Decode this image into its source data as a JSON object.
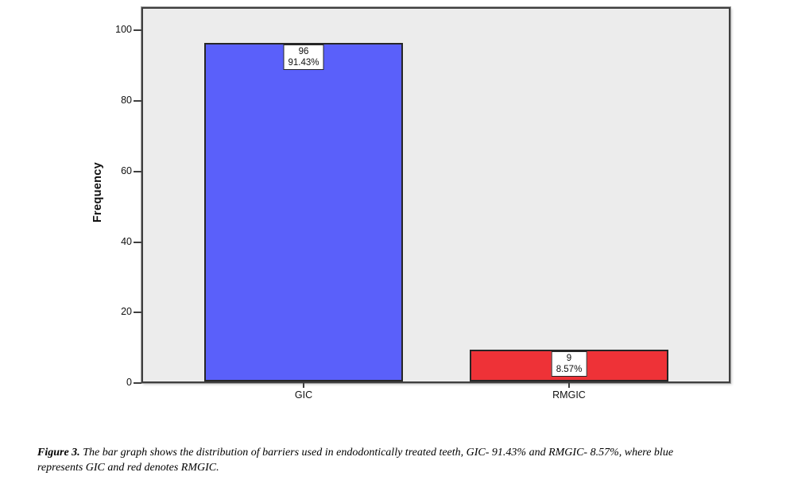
{
  "chart_data": {
    "type": "bar",
    "title": "",
    "categories": [
      "GIC",
      "RMGIC"
    ],
    "values": [
      96,
      9
    ],
    "bar_labels": [
      [
        "96",
        "91.43%"
      ],
      [
        "9",
        "8.57%"
      ]
    ],
    "percentages": [
      "91.43%",
      "8.57%"
    ],
    "xlabel": "",
    "ylabel": "Frequency",
    "yticks": [
      0,
      20,
      40,
      60,
      80,
      100
    ],
    "ylim": [
      0,
      106.5
    ],
    "grid": false,
    "legend_position": "none",
    "bar_colors": [
      "#5a60fa",
      "#ee3237"
    ],
    "plot_background": "#ececec"
  },
  "caption": {
    "prefix": "Figure 3.",
    "line1_rest": " The bar graph shows the distribution of barriers used in endodontically treated teeth, GIC- 91.43% and RMGIC- 8.57%, where blue",
    "line2": "represents GIC and red denotes RMGIC."
  }
}
